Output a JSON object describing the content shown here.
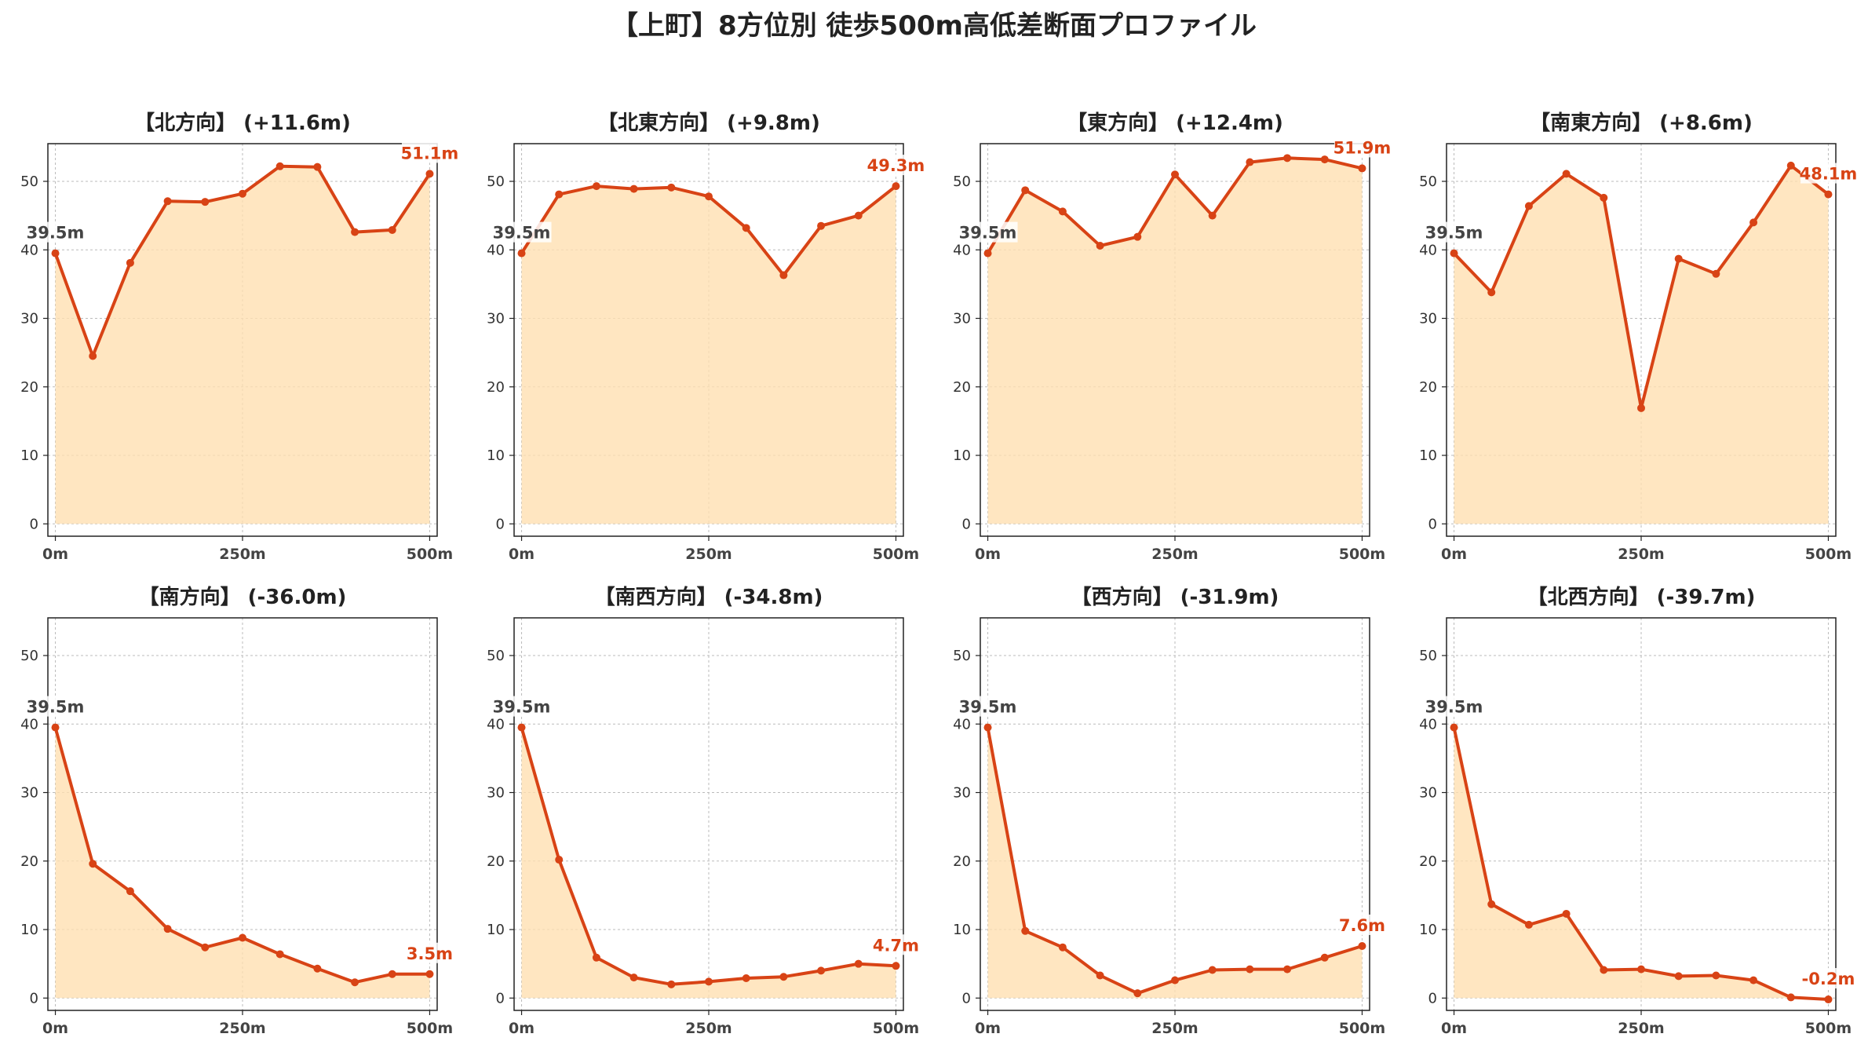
{
  "title": "【上町】8方位別 徒歩500m高低差断面プロファイル",
  "colors": {
    "line": "#d84315",
    "fill": "#ffe0b2",
    "grid": "#bbbbbb",
    "start_label": "#444444",
    "end_label": "#d84315"
  },
  "chart_data": [
    {
      "type": "area",
      "title": "【北方向】 (+11.6m)",
      "x": [
        0,
        50,
        100,
        150,
        200,
        250,
        300,
        350,
        400,
        450,
        500
      ],
      "y": [
        39.5,
        24.5,
        38.1,
        47.1,
        47.0,
        48.2,
        52.2,
        52.1,
        42.6,
        42.9,
        51.1
      ],
      "start_label": "39.5m",
      "end_label": "51.1m",
      "xticks": [
        "0m",
        "250m",
        "500m"
      ],
      "xtick_values": [
        0,
        250,
        500
      ],
      "yticks": [
        0,
        10,
        20,
        30,
        40,
        50
      ],
      "xlim": [
        -10,
        510
      ],
      "ylim": [
        -1.8,
        55.5
      ],
      "grid": true
    },
    {
      "type": "area",
      "title": "【北東方向】 (+9.8m)",
      "x": [
        0,
        50,
        100,
        150,
        200,
        250,
        300,
        350,
        400,
        450,
        500
      ],
      "y": [
        39.5,
        48.1,
        49.3,
        48.9,
        49.1,
        47.8,
        43.2,
        36.3,
        43.5,
        45.0,
        49.3
      ],
      "start_label": "39.5m",
      "end_label": "49.3m",
      "xticks": [
        "0m",
        "250m",
        "500m"
      ],
      "xtick_values": [
        0,
        250,
        500
      ],
      "yticks": [
        0,
        10,
        20,
        30,
        40,
        50
      ],
      "xlim": [
        -10,
        510
      ],
      "ylim": [
        -1.8,
        55.5
      ],
      "grid": true
    },
    {
      "type": "area",
      "title": "【東方向】 (+12.4m)",
      "x": [
        0,
        50,
        100,
        150,
        200,
        250,
        300,
        350,
        400,
        450,
        500
      ],
      "y": [
        39.5,
        48.7,
        45.6,
        40.6,
        41.9,
        51.0,
        45.0,
        52.8,
        53.4,
        53.2,
        51.9
      ],
      "start_label": "39.5m",
      "end_label": "51.9m",
      "xticks": [
        "0m",
        "250m",
        "500m"
      ],
      "xtick_values": [
        0,
        250,
        500
      ],
      "yticks": [
        0,
        10,
        20,
        30,
        40,
        50
      ],
      "xlim": [
        -10,
        510
      ],
      "ylim": [
        -1.8,
        55.5
      ],
      "grid": true
    },
    {
      "type": "area",
      "title": "【南東方向】 (+8.6m)",
      "x": [
        0,
        50,
        100,
        150,
        200,
        250,
        300,
        350,
        400,
        450,
        500
      ],
      "y": [
        39.5,
        33.8,
        46.4,
        51.1,
        47.6,
        16.9,
        38.7,
        36.5,
        44.0,
        52.3,
        48.1
      ],
      "start_label": "39.5m",
      "end_label": "48.1m",
      "xticks": [
        "0m",
        "250m",
        "500m"
      ],
      "xtick_values": [
        0,
        250,
        500
      ],
      "yticks": [
        0,
        10,
        20,
        30,
        40,
        50
      ],
      "xlim": [
        -10,
        510
      ],
      "ylim": [
        -1.8,
        55.5
      ],
      "grid": true
    },
    {
      "type": "area",
      "title": "【南方向】 (-36.0m)",
      "x": [
        0,
        50,
        100,
        150,
        200,
        250,
        300,
        350,
        400,
        450,
        500
      ],
      "y": [
        39.5,
        19.6,
        15.6,
        10.1,
        7.4,
        8.8,
        6.4,
        4.3,
        2.3,
        3.5,
        3.5
      ],
      "start_label": "39.5m",
      "end_label": "3.5m",
      "xticks": [
        "0m",
        "250m",
        "500m"
      ],
      "xtick_values": [
        0,
        250,
        500
      ],
      "yticks": [
        0,
        10,
        20,
        30,
        40,
        50
      ],
      "xlim": [
        -10,
        510
      ],
      "ylim": [
        -1.8,
        55.5
      ],
      "grid": true
    },
    {
      "type": "area",
      "title": "【南西方向】 (-34.8m)",
      "x": [
        0,
        50,
        100,
        150,
        200,
        250,
        300,
        350,
        400,
        450,
        500
      ],
      "y": [
        39.5,
        20.2,
        5.9,
        3.0,
        2.0,
        2.4,
        2.9,
        3.1,
        4.0,
        5.0,
        4.7
      ],
      "start_label": "39.5m",
      "end_label": "4.7m",
      "xticks": [
        "0m",
        "250m",
        "500m"
      ],
      "xtick_values": [
        0,
        250,
        500
      ],
      "yticks": [
        0,
        10,
        20,
        30,
        40,
        50
      ],
      "xlim": [
        -10,
        510
      ],
      "ylim": [
        -1.8,
        55.5
      ],
      "grid": true
    },
    {
      "type": "area",
      "title": "【西方向】 (-31.9m)",
      "x": [
        0,
        50,
        100,
        150,
        200,
        250,
        300,
        350,
        400,
        450,
        500
      ],
      "y": [
        39.5,
        9.8,
        7.4,
        3.3,
        0.7,
        2.6,
        4.1,
        4.2,
        4.2,
        5.9,
        7.6
      ],
      "start_label": "39.5m",
      "end_label": "7.6m",
      "xticks": [
        "0m",
        "250m",
        "500m"
      ],
      "xtick_values": [
        0,
        250,
        500
      ],
      "yticks": [
        0,
        10,
        20,
        30,
        40,
        50
      ],
      "xlim": [
        -10,
        510
      ],
      "ylim": [
        -1.8,
        55.5
      ],
      "grid": true
    },
    {
      "type": "area",
      "title": "【北西方向】 (-39.7m)",
      "x": [
        0,
        50,
        100,
        150,
        200,
        250,
        300,
        350,
        400,
        450,
        500
      ],
      "y": [
        39.5,
        13.7,
        10.7,
        12.3,
        4.1,
        4.2,
        3.2,
        3.3,
        2.6,
        0.1,
        -0.2
      ],
      "start_label": "39.5m",
      "end_label": "-0.2m",
      "xticks": [
        "0m",
        "250m",
        "500m"
      ],
      "xtick_values": [
        0,
        250,
        500
      ],
      "yticks": [
        0,
        10,
        20,
        30,
        40,
        50
      ],
      "xlim": [
        -10,
        510
      ],
      "ylim": [
        -1.8,
        55.5
      ],
      "grid": true
    }
  ]
}
